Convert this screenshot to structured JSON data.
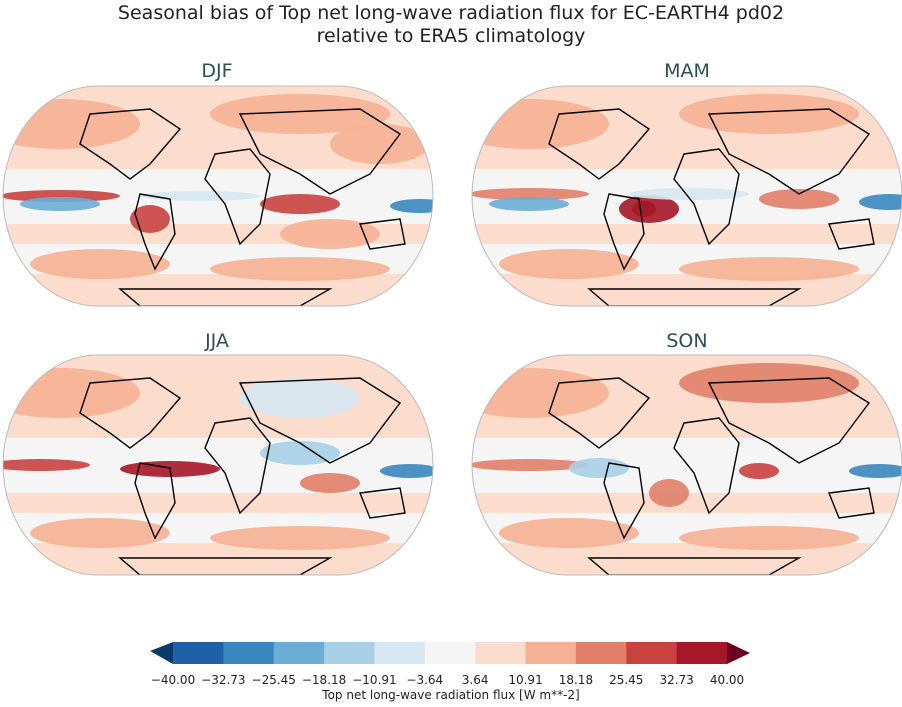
{
  "title_line1": "Seasonal bias of Top net long-wave radiation flux for EC-EARTH4 pd02",
  "title_line2": "relative to ERA5 climatology",
  "panels": [
    {
      "label": "DJF"
    },
    {
      "label": "MAM"
    },
    {
      "label": "JJA"
    },
    {
      "label": "SON"
    }
  ],
  "colorbar": {
    "label": "Top net long-wave radiation flux [W m**-2]",
    "ticks": [
      "−40.00",
      "−32.73",
      "−25.45",
      "−18.18",
      "−10.91",
      "−3.64",
      "3.64",
      "10.91",
      "18.18",
      "25.45",
      "32.73",
      "40.00"
    ],
    "colors": [
      "#2060a7",
      "#3a87c0",
      "#6aaed5",
      "#a7cfe5",
      "#d6e7f1",
      "#f5f5f5",
      "#fcdccc",
      "#f6b194",
      "#e17f69",
      "#c94340",
      "#a51729"
    ],
    "extend_low_color": "#0b3a6e",
    "extend_high_color": "#6b0020"
  }
}
